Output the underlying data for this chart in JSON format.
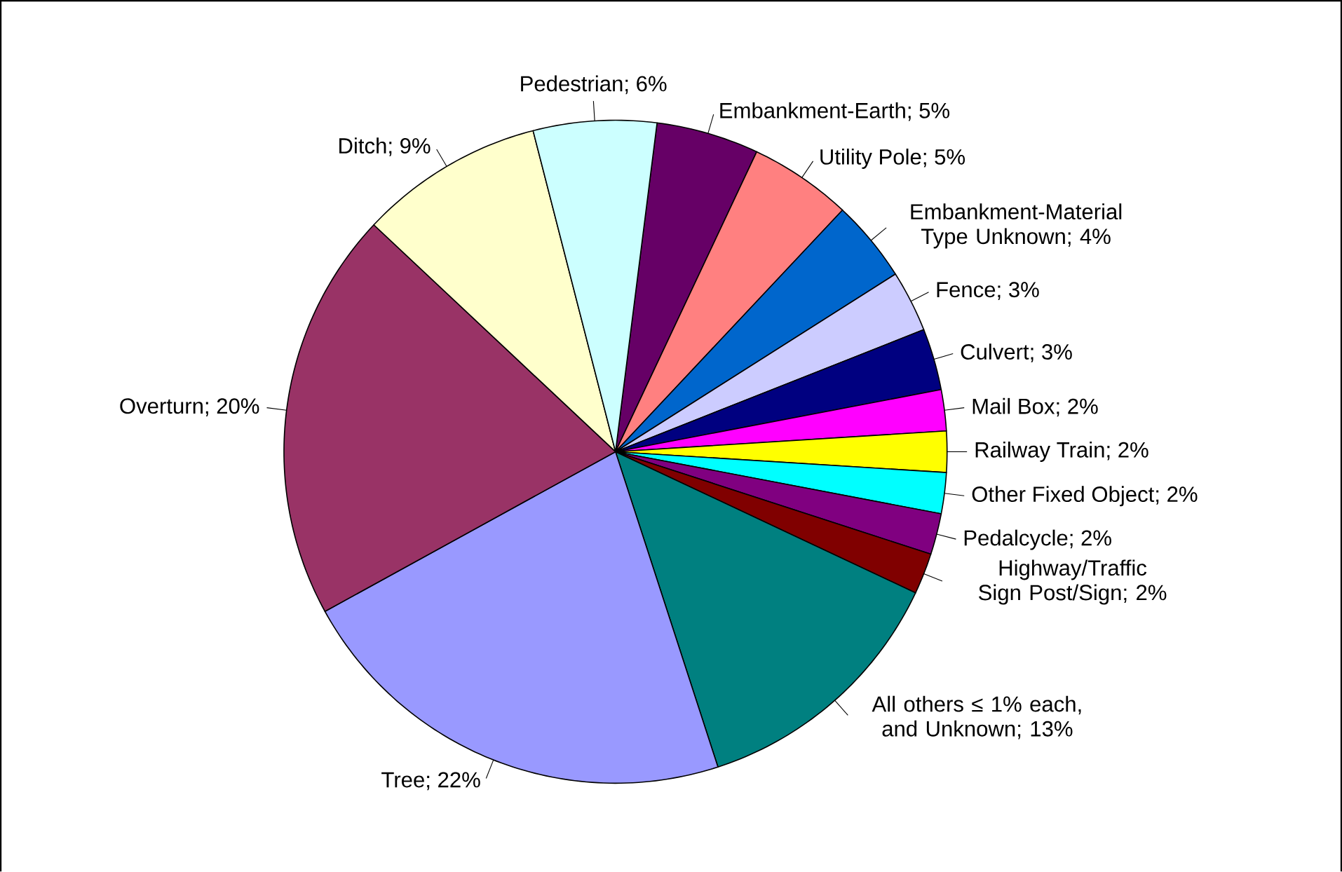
{
  "chart_data": {
    "type": "pie",
    "categories": [
      "Embankment-Earth",
      "Utility Pole",
      "Embankment-Material Type Unknown",
      "Fence",
      "Culvert",
      "Mail Box",
      "Railway Train",
      "Other Fixed Object",
      "Pedalcycle",
      "Highway/Traffic Sign Post/Sign",
      "All others ≤ 1% each, and Unknown",
      "Tree",
      "Overturn",
      "Ditch",
      "Pedestrian"
    ],
    "values": [
      5,
      5,
      4,
      3,
      3,
      2,
      2,
      2,
      2,
      2,
      13,
      22,
      20,
      9,
      6
    ],
    "colors": [
      "#660066",
      "#ff8080",
      "#0066cc",
      "#ccccff",
      "#000080",
      "#ff00ff",
      "#ffff00",
      "#00ffff",
      "#800080",
      "#800000",
      "#008080",
      "#9999ff",
      "#993366",
      "#ffffcc",
      "#ccffff"
    ],
    "value_labels": [
      "; 5%",
      "; 5%",
      "; 4%",
      "; 3%",
      "; 3%",
      "; 2%",
      "; 2%",
      "; 2%",
      "; 2%",
      "; 2%",
      "; 13%",
      "; 22%",
      "; 20%",
      "; 9%",
      "; 6%"
    ]
  }
}
